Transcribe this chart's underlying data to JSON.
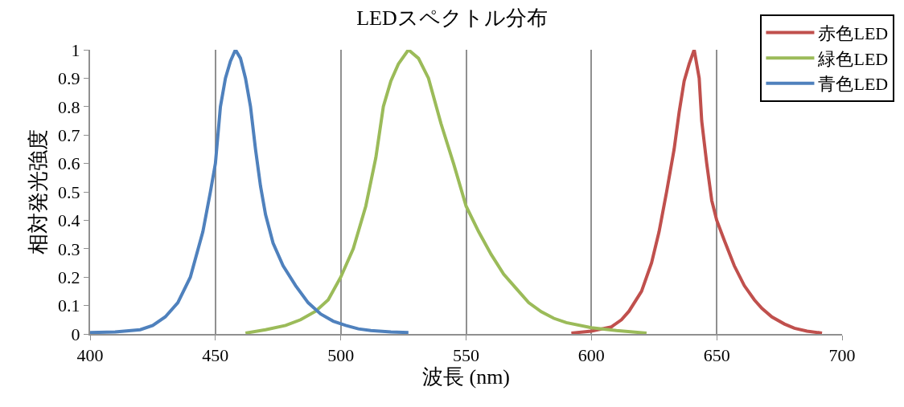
{
  "chart_data": {
    "type": "line",
    "title": "LEDスペクトル分布",
    "xlabel": "波長 (nm)",
    "ylabel": "相対発光強度",
    "xlim": [
      400,
      700
    ],
    "xticks": [
      400,
      450,
      500,
      550,
      600,
      650,
      700
    ],
    "ylim": [
      0,
      1
    ],
    "yticks": [
      0,
      0.1,
      0.2,
      0.3,
      0.4,
      0.5,
      0.6,
      0.7,
      0.8,
      0.9,
      1
    ],
    "grid": "x",
    "legend": "top right",
    "marker": "none",
    "line_style": "solid",
    "series": [
      {
        "name": "赤色LED",
        "color": "#c0504d",
        "x": [
          592,
          600,
          608,
          612,
          615,
          620,
          624,
          627,
          630,
          633,
          635,
          637,
          639,
          641,
          643,
          644,
          646,
          648,
          650,
          653,
          657,
          661,
          665,
          668,
          672,
          677,
          681,
          686,
          692
        ],
        "values": [
          0.003,
          0.01,
          0.025,
          0.05,
          0.08,
          0.15,
          0.25,
          0.36,
          0.5,
          0.65,
          0.78,
          0.89,
          0.95,
          1.0,
          0.9,
          0.75,
          0.6,
          0.47,
          0.4,
          0.33,
          0.24,
          0.17,
          0.12,
          0.09,
          0.06,
          0.035,
          0.02,
          0.01,
          0.003
        ]
      },
      {
        "name": "緑色LED",
        "color": "#9bbb59",
        "x": [
          462,
          470,
          478,
          484,
          490,
          495,
          500,
          505,
          510,
          514,
          517,
          520,
          523,
          527,
          531,
          535,
          540,
          545,
          550,
          555,
          560,
          565,
          570,
          575,
          580,
          585,
          590,
          600,
          610,
          622
        ],
        "values": [
          0.003,
          0.015,
          0.03,
          0.05,
          0.08,
          0.12,
          0.2,
          0.3,
          0.45,
          0.62,
          0.8,
          0.89,
          0.95,
          1.0,
          0.97,
          0.9,
          0.74,
          0.6,
          0.45,
          0.36,
          0.28,
          0.21,
          0.16,
          0.11,
          0.078,
          0.055,
          0.04,
          0.022,
          0.012,
          0.003
        ]
      },
      {
        "name": "青色LED",
        "color": "#4f81bd",
        "x": [
          400,
          410,
          420,
          425,
          430,
          435,
          440,
          445,
          448,
          450,
          452,
          454,
          456,
          458,
          460,
          462,
          464,
          466,
          468,
          470,
          473,
          477,
          482,
          487,
          492,
          497,
          502,
          507,
          512,
          520,
          527
        ],
        "values": [
          0.005,
          0.007,
          0.015,
          0.03,
          0.06,
          0.11,
          0.2,
          0.36,
          0.5,
          0.6,
          0.8,
          0.9,
          0.96,
          1.0,
          0.97,
          0.9,
          0.8,
          0.65,
          0.52,
          0.42,
          0.32,
          0.24,
          0.17,
          0.11,
          0.07,
          0.045,
          0.03,
          0.018,
          0.012,
          0.007,
          0.005
        ]
      }
    ]
  }
}
